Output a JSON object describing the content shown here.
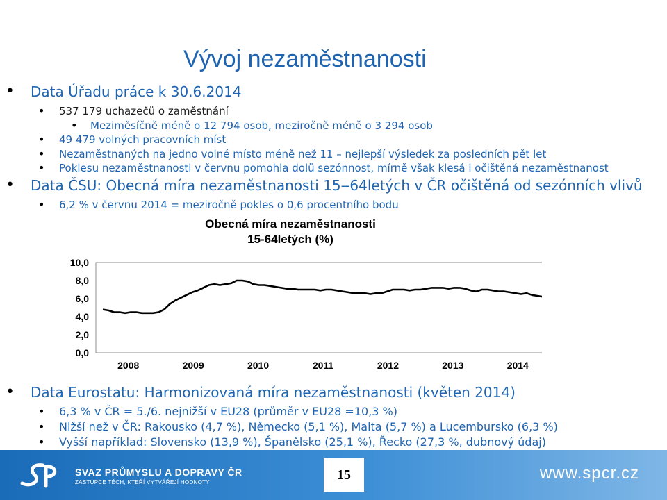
{
  "title": "Vývoj nezaměstnanosti",
  "bullets_top": [
    {
      "level": 1,
      "text": "Data Úřadu práce k 30.6.2014"
    },
    {
      "level": 2,
      "text": "537 179 uchazečů o zaměstnání"
    },
    {
      "level": 3,
      "text": "Meziměsíčně méně o 12 794 osob, meziročně méně o 3 294 osob"
    },
    {
      "level": 2,
      "text": "49 479 volných pracovních míst"
    },
    {
      "level": 2,
      "text": "Nezaměstnaných na jedno volné místo méně než 11 – nejlepší výsledek za posledních pět let"
    },
    {
      "level": 2,
      "text": "Poklesu nezaměstnanosti v červnu pomohla dolů sezónnost, mírně však klesá i očištěná nezaměstnanost"
    },
    {
      "level": 1,
      "text": "Data ČSU: Obecná míra nezaměstnanosti 15‒64letých v ČR očištěná od sezónních vlivů"
    },
    {
      "level": 2,
      "text": "6,2 % v červnu 2014 = meziročně pokles o 0,6 procentního bodu"
    }
  ],
  "bullets_bottom": [
    {
      "level": 1,
      "text": "Data Eurostatu: Harmonizovaná míra nezaměstnanosti (květen 2014)"
    },
    {
      "level": 2,
      "text": "6,3 % v ČR = 5./6. nejnižší v EU28 (průměr v EU28 =10,3 %)"
    },
    {
      "level": 2,
      "text": "Nižší než v ČR:  Rakousko (4,7 %), Německo (5,1 %), Malta (5,7 %) a Lucembursko (6,3 %)"
    },
    {
      "level": 2,
      "text": "Vyšší například: Slovensko (13,9 %), Španělsko (25,1 %), Řecko (27,3 %, dubnový údaj)"
    }
  ],
  "chart_data": {
    "type": "line",
    "title_lines": [
      "Obecná míra nezaměstnanosti",
      "15-64letých (%)"
    ],
    "y_ticks": [
      "0,0",
      "2,0",
      "4,0",
      "6,0",
      "8,0",
      "10,0"
    ],
    "ylim": [
      0,
      10
    ],
    "x_ticks": [
      "2008",
      "2009",
      "2010",
      "2011",
      "2012",
      "2013",
      "2014"
    ],
    "grid": false,
    "line_color": "#000000",
    "series": [
      {
        "values": [
          4.8,
          4.7,
          4.5,
          4.5,
          4.4,
          4.5,
          4.5,
          4.4,
          4.4,
          4.4,
          4.5,
          4.8,
          5.4,
          5.8,
          6.1,
          6.4,
          6.7,
          6.9,
          7.2,
          7.5,
          7.6,
          7.5,
          7.6,
          7.7,
          8.0,
          8.0,
          7.9,
          7.6,
          7.5,
          7.5,
          7.4,
          7.3,
          7.2,
          7.1,
          7.1,
          7.0,
          7.0,
          7.0,
          7.0,
          6.9,
          7.0,
          7.0,
          6.9,
          6.8,
          6.7,
          6.6,
          6.6,
          6.6,
          6.5,
          6.6,
          6.6,
          6.8,
          7.0,
          7.0,
          7.0,
          6.9,
          7.0,
          7.0,
          7.1,
          7.2,
          7.2,
          7.2,
          7.1,
          7.2,
          7.2,
          7.1,
          6.9,
          6.8,
          7.0,
          7.0,
          6.9,
          6.8,
          6.8,
          6.7,
          6.6,
          6.5,
          6.6,
          6.4,
          6.3,
          6.2
        ]
      }
    ]
  },
  "footer": {
    "org_name": "SVAZ PRŮMYSLU A DOPRAVY ČR",
    "org_tagline": "ZASTUPCE TĚCH, KTEŘÍ VYTVÁŘEJÍ HODNOTY",
    "page_number": "15",
    "website": "www.spcr.cz"
  }
}
